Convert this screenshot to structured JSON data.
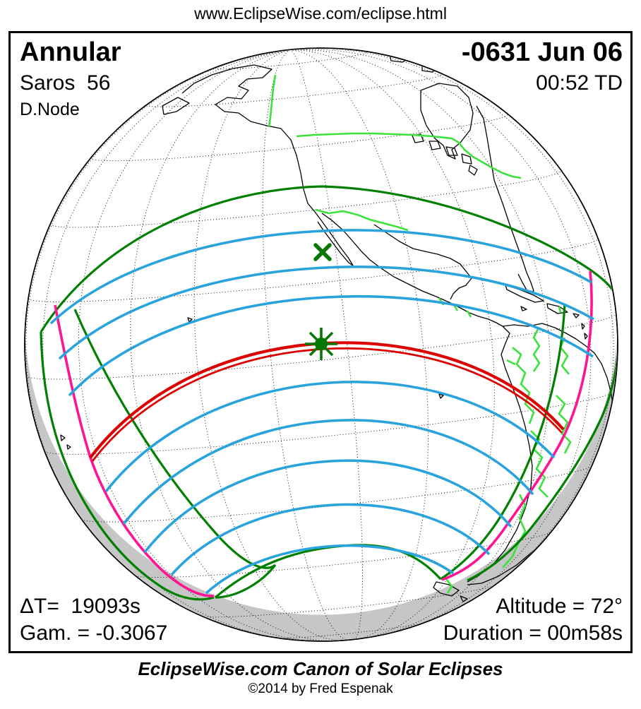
{
  "header": {
    "url_text": "www.EclipseWise.com/eclipse.html"
  },
  "panel": {
    "top_left": {
      "eclipse_type": "Annular",
      "saros": "Saros  56",
      "node": "D.Node"
    },
    "top_right": {
      "date": "-0631 Jun 06",
      "time": "00:52 TD"
    },
    "bottom_left": {
      "delta_t": "ΔT=  19093s",
      "gamma": "Gam. = -0.3067"
    },
    "bottom_right": {
      "altitude": "Altitude = 72°",
      "duration": "Duration = 00m58s"
    }
  },
  "footer": {
    "title": "EclipseWise.com Canon of Solar Eclipses",
    "copyright": "©2014 by Fred Espenak"
  },
  "map": {
    "projection": "orthographic globe",
    "markers": [
      {
        "name": "greatest-eclipse-asterisk",
        "symbol": "asterisk"
      },
      {
        "name": "sub-solar-x",
        "symbol": "x"
      }
    ],
    "colors": {
      "gray": "#c6c6c6",
      "border-green": "#3be23b",
      "limit-green": "#008000",
      "blue": "#29a3dc",
      "red": "#dd0000",
      "magenta": "#ff1493",
      "marker-green": "#067806"
    }
  }
}
